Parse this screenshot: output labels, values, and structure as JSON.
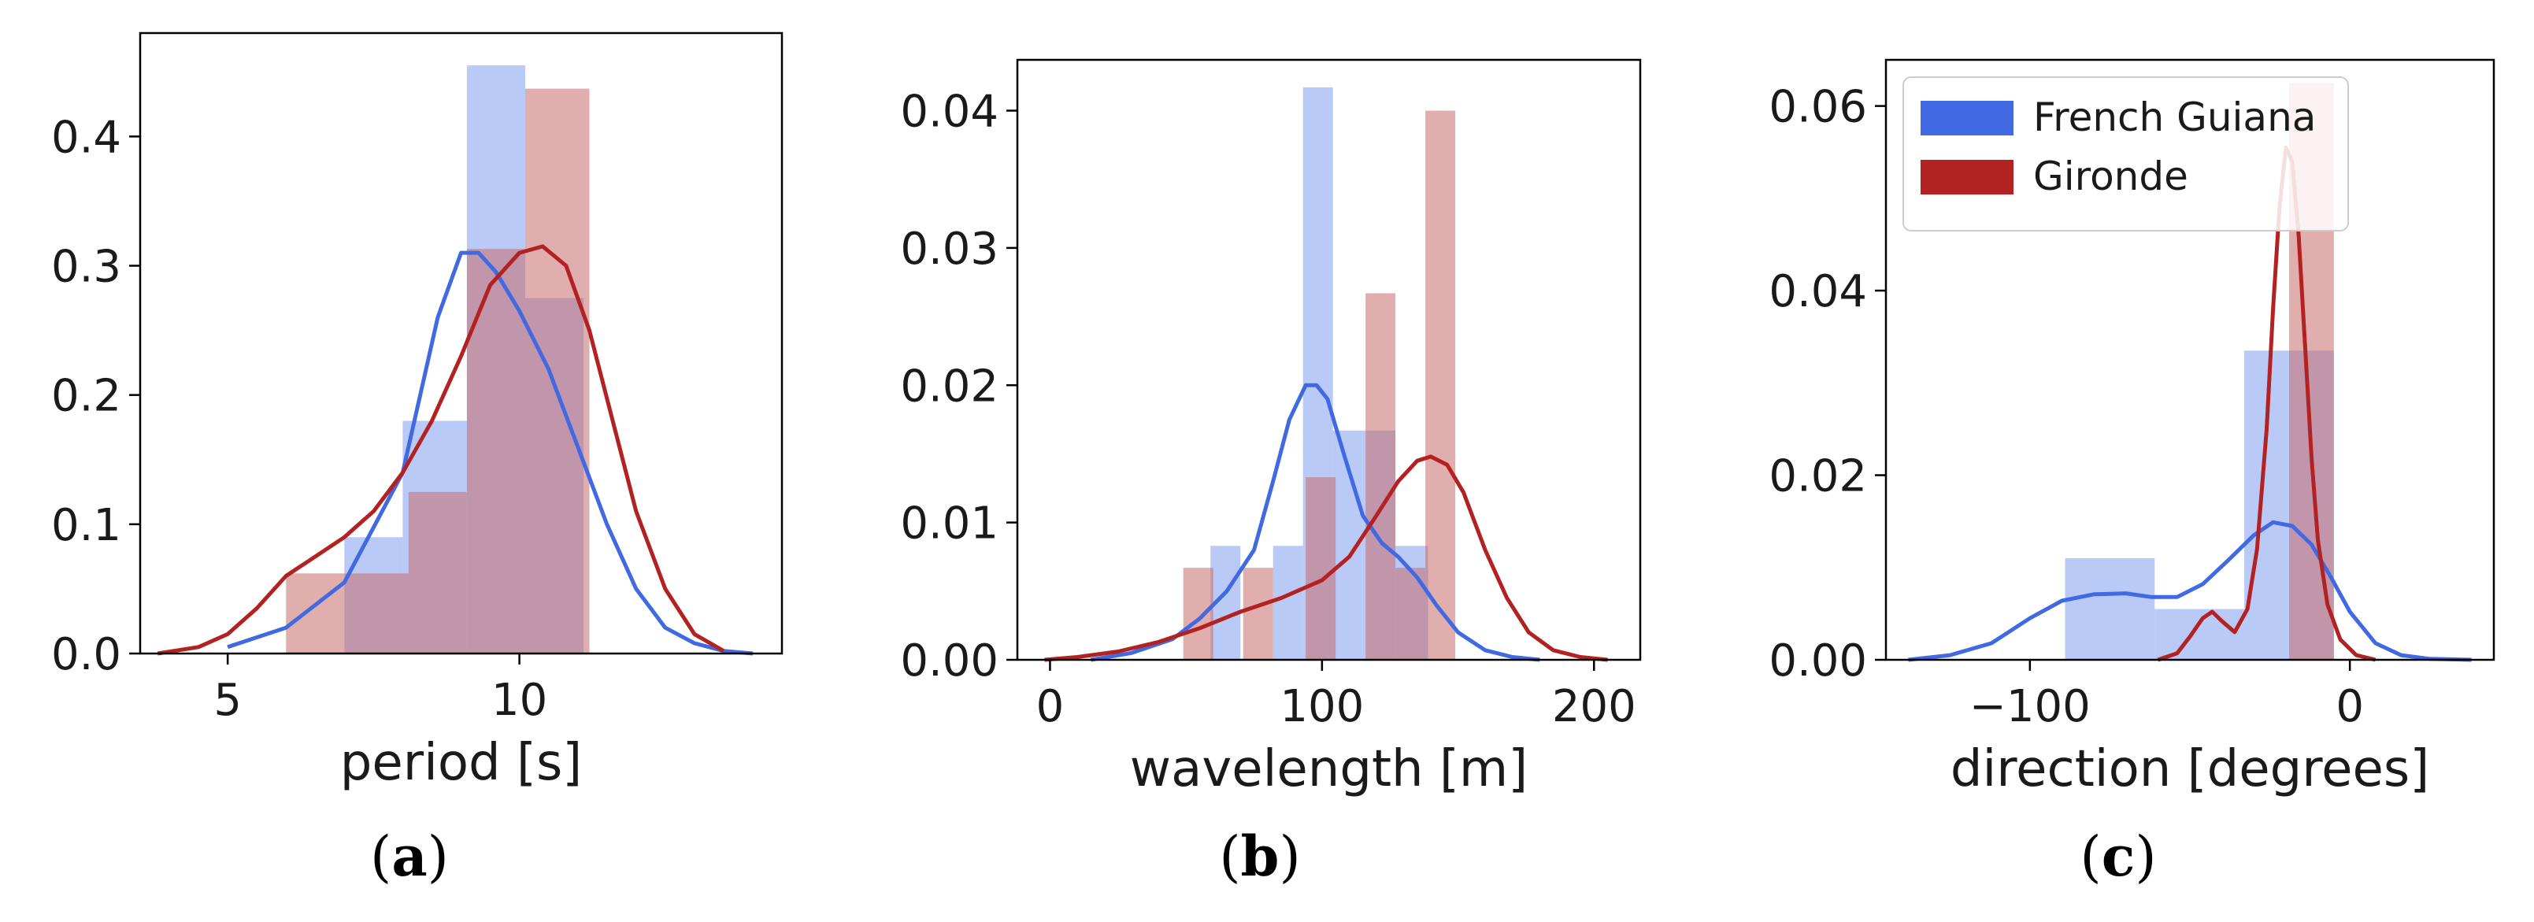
{
  "colors": {
    "french_guiana": "#4169e1",
    "gironde": "#b22222",
    "french_guiana_bar": "#7f9ff0",
    "gironde_bar": "#c96b6b"
  },
  "legend": {
    "placement": "top-left",
    "entries": [
      {
        "label": "French Guiana",
        "color": "#4169e1"
      },
      {
        "label": "Gironde",
        "color": "#b22222"
      }
    ]
  },
  "chart_data": [
    {
      "type": "bar",
      "caption_letter": "a",
      "xlabel": "period [s]",
      "ylabel": "",
      "xlim": [
        3.5,
        14.5
      ],
      "ylim": [
        0,
        0.48
      ],
      "xticks": [
        5,
        10
      ],
      "yticks": [
        0.0,
        0.1,
        0.2,
        0.3,
        0.4
      ],
      "ytick_labels": [
        "0.0",
        "0.1",
        "0.2",
        "0.3",
        "0.4"
      ],
      "histograms": [
        {
          "name": "French Guiana",
          "bins": [
            [
              5.9,
              7.0,
              0.0
            ],
            [
              7.0,
              8.0,
              0.09
            ],
            [
              8.0,
              9.1,
              0.18
            ],
            [
              9.1,
              10.1,
              0.455
            ],
            [
              10.1,
              11.1,
              0.275
            ]
          ]
        },
        {
          "name": "Gironde",
          "bins": [
            [
              6.0,
              7.0,
              0.062
            ],
            [
              7.0,
              8.1,
              0.062
            ],
            [
              8.1,
              9.1,
              0.125
            ],
            [
              9.1,
              10.1,
              0.313
            ],
            [
              10.1,
              11.2,
              0.437
            ]
          ]
        }
      ],
      "kde": [
        {
          "name": "French Guiana",
          "x": [
            5.0,
            6.0,
            7.0,
            8.0,
            8.6,
            9.0,
            9.3,
            9.6,
            10.0,
            10.5,
            11.0,
            11.5,
            12.0,
            12.5,
            13.0,
            13.5,
            14.0
          ],
          "y": [
            0.005,
            0.02,
            0.055,
            0.14,
            0.26,
            0.31,
            0.31,
            0.295,
            0.265,
            0.22,
            0.16,
            0.1,
            0.05,
            0.02,
            0.008,
            0.002,
            0.0
          ]
        },
        {
          "name": "Gironde",
          "x": [
            3.8,
            4.5,
            5.0,
            5.5,
            6.0,
            6.5,
            7.0,
            7.5,
            8.0,
            8.5,
            9.0,
            9.5,
            10.0,
            10.4,
            10.8,
            11.2,
            11.6,
            12.0,
            12.5,
            13.0,
            13.5
          ],
          "y": [
            0.0,
            0.005,
            0.015,
            0.035,
            0.06,
            0.075,
            0.09,
            0.11,
            0.14,
            0.18,
            0.23,
            0.285,
            0.31,
            0.315,
            0.3,
            0.25,
            0.18,
            0.11,
            0.05,
            0.015,
            0.002
          ]
        }
      ]
    },
    {
      "type": "bar",
      "caption_letter": "b",
      "xlabel": "wavelength [m]",
      "ylabel": "",
      "xlim": [
        -12,
        217
      ],
      "ylim": [
        0,
        0.0437
      ],
      "xticks": [
        0,
        100,
        200
      ],
      "yticks": [
        0.0,
        0.01,
        0.02,
        0.03,
        0.04
      ],
      "ytick_labels": [
        "0.00",
        "0.01",
        "0.02",
        "0.03",
        "0.04"
      ],
      "histograms": [
        {
          "name": "French Guiana",
          "bins": [
            [
              59,
              70,
              0.0083
            ],
            [
              70,
              82,
              0.0
            ],
            [
              82,
              93,
              0.0083
            ],
            [
              93,
              104,
              0.0417
            ],
            [
              104,
              116,
              0.0167
            ],
            [
              116,
              127,
              0.0167
            ],
            [
              127,
              139,
              0.0083
            ]
          ]
        },
        {
          "name": "Gironde",
          "bins": [
            [
              49,
              60,
              0.0067
            ],
            [
              60,
              71,
              0.0
            ],
            [
              71,
              82,
              0.0067
            ],
            [
              82,
              94,
              0.0
            ],
            [
              94,
              105,
              0.0133
            ],
            [
              105,
              116,
              0.0
            ],
            [
              116,
              127,
              0.0267
            ],
            [
              127,
              138,
              0.0067
            ],
            [
              138,
              149,
              0.04
            ]
          ]
        }
      ],
      "kde": [
        {
          "name": "French Guiana",
          "x": [
            15,
            30,
            45,
            55,
            65,
            75,
            82,
            88,
            94,
            98,
            102,
            108,
            115,
            122,
            128,
            135,
            142,
            150,
            160,
            170,
            180
          ],
          "y": [
            0.0,
            0.0005,
            0.0015,
            0.003,
            0.005,
            0.008,
            0.013,
            0.0175,
            0.02,
            0.02,
            0.019,
            0.015,
            0.0105,
            0.0085,
            0.0075,
            0.006,
            0.004,
            0.002,
            0.0007,
            0.0002,
            0.0
          ]
        },
        {
          "name": "Gironde",
          "x": [
            -2,
            10,
            25,
            40,
            55,
            70,
            85,
            100,
            110,
            120,
            128,
            135,
            140,
            146,
            152,
            160,
            168,
            176,
            185,
            195,
            205
          ],
          "y": [
            0.0,
            0.0002,
            0.0006,
            0.0013,
            0.0023,
            0.0035,
            0.0045,
            0.0058,
            0.0075,
            0.0105,
            0.013,
            0.0145,
            0.0148,
            0.0142,
            0.0122,
            0.008,
            0.0045,
            0.002,
            0.0007,
            0.0002,
            0.0
          ]
        }
      ]
    },
    {
      "type": "bar",
      "caption_letter": "c",
      "xlabel": "direction [degrees]",
      "ylabel": "",
      "xlim": [
        -145,
        45
      ],
      "ylim": [
        0,
        0.065
      ],
      "xticks": [
        -100,
        0
      ],
      "xtick_labels": [
        "−100",
        "0"
      ],
      "yticks": [
        0.0,
        0.02,
        0.04,
        0.06
      ],
      "ytick_labels": [
        "0.00",
        "0.02",
        "0.04",
        "0.06"
      ],
      "histograms": [
        {
          "name": "French Guiana",
          "bins": [
            [
              -89,
              -61,
              0.011
            ],
            [
              -61,
              -33,
              0.0055
            ],
            [
              -33,
              -5,
              0.0335
            ]
          ]
        },
        {
          "name": "Gironde",
          "bins": [
            [
              -47,
              -33,
              0.0
            ],
            [
              -33,
              -18,
              0.0
            ],
            [
              -33,
              -19,
              0.0
            ],
            [
              -19,
              -5,
              0.0625
            ]
          ]
        }
      ],
      "kde": [
        {
          "name": "French Guiana",
          "x": [
            -138,
            -125,
            -112,
            -100,
            -90,
            -80,
            -70,
            -62,
            -54,
            -46,
            -38,
            -30,
            -24,
            -18,
            -12,
            -6,
            0,
            8,
            16,
            25,
            38
          ],
          "y": [
            0.0,
            0.0005,
            0.0018,
            0.0045,
            0.0064,
            0.0071,
            0.0072,
            0.0068,
            0.0068,
            0.0082,
            0.0108,
            0.0135,
            0.0149,
            0.0145,
            0.0125,
            0.009,
            0.0052,
            0.0018,
            0.0005,
            0.0001,
            0.0
          ]
        },
        {
          "name": "Gironde",
          "x": [
            -60,
            -54,
            -50,
            -46,
            -43,
            -40,
            -36,
            -32,
            -29,
            -26,
            -24,
            -22,
            -20,
            -18,
            -16,
            -14,
            -12,
            -10,
            -7,
            -3,
            2,
            8
          ],
          "y": [
            0.0,
            0.0007,
            0.0025,
            0.0045,
            0.0052,
            0.0042,
            0.003,
            0.0055,
            0.012,
            0.025,
            0.038,
            0.049,
            0.0555,
            0.054,
            0.046,
            0.034,
            0.022,
            0.013,
            0.006,
            0.0022,
            0.0005,
            0.0
          ]
        }
      ]
    }
  ]
}
